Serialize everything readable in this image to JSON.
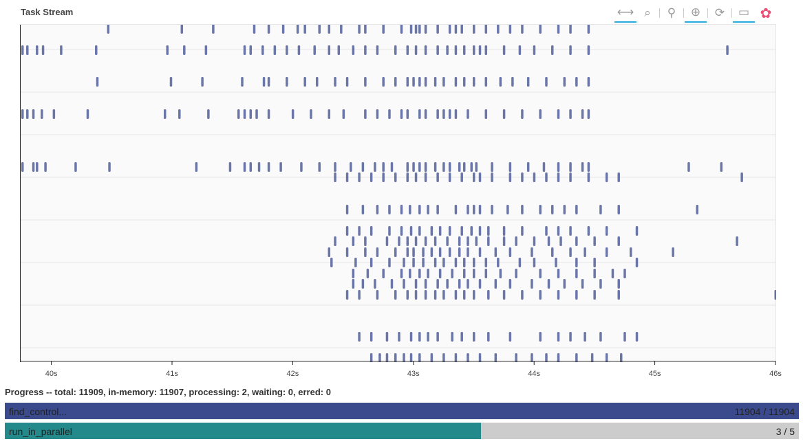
{
  "title": "Task Stream",
  "toolbar": [
    {
      "icon": "pan-icon",
      "glyph": "⟷",
      "active": true
    },
    {
      "icon": "box-zoom-icon",
      "glyph": "⌕",
      "active": false
    },
    {
      "icon": "wheel-zoom-icon",
      "glyph": "⚲",
      "active": false
    },
    {
      "icon": "wheel-zoom-plus-icon",
      "glyph": "⊕",
      "active": true
    },
    {
      "icon": "reset-icon",
      "glyph": "⟳",
      "active": false
    },
    {
      "icon": "hover-icon",
      "glyph": "▭",
      "active": true
    },
    {
      "icon": "bokeh-logo-icon",
      "glyph": "✿",
      "active": false
    }
  ],
  "axis": {
    "ticks": [
      "40s",
      "41s",
      "42s",
      "43s",
      "44s",
      "45s",
      "46s"
    ],
    "tick_values": [
      40,
      41,
      42,
      43,
      44,
      45,
      46
    ],
    "range": [
      39.74,
      46.0
    ]
  },
  "task_color": "#3b4a8c",
  "task_rows": [
    {
      "lane": 0,
      "times": [
        40.47,
        41.08,
        41.34,
        41.68,
        41.8,
        41.92,
        42.04,
        42.1,
        42.22,
        42.3,
        42.4,
        42.55,
        42.6,
        42.75,
        42.9,
        42.98,
        43.02,
        43.05,
        43.1,
        43.2,
        43.3,
        43.35,
        43.4,
        43.5,
        43.6,
        43.7,
        43.8,
        43.9,
        44.05,
        44.2,
        44.3,
        44.45
      ]
    },
    {
      "lane": 1,
      "times": [
        39.76,
        39.8,
        39.88,
        39.93,
        40.08,
        40.37,
        40.96,
        41.1,
        41.28,
        41.6,
        41.65,
        41.75,
        41.85,
        41.95,
        42.05,
        42.18,
        42.3,
        42.38,
        42.5,
        42.6,
        42.7,
        42.85,
        42.95,
        43.02,
        43.1,
        43.2,
        43.28,
        43.35,
        43.42,
        43.5,
        43.55,
        43.6,
        43.75,
        43.88,
        44.0,
        44.15,
        44.3,
        44.45,
        45.6
      ]
    },
    {
      "lane": 2,
      "times": [
        40.38,
        40.99,
        41.25,
        41.58,
        41.76,
        41.8,
        41.95,
        42.1,
        42.2,
        42.35,
        42.45,
        42.6,
        42.75,
        42.85,
        42.95,
        43.0,
        43.05,
        43.1,
        43.18,
        43.25,
        43.35,
        43.42,
        43.5,
        43.6,
        43.72,
        43.82,
        43.95,
        44.1,
        44.25,
        44.35,
        44.45
      ]
    },
    {
      "lane": 3,
      "times": [
        39.76,
        39.8,
        39.85,
        39.92,
        40.02,
        40.3,
        40.94,
        41.06,
        41.3,
        41.55,
        41.6,
        41.65,
        41.7,
        41.8,
        42.0,
        42.15,
        42.3,
        42.42,
        42.6,
        42.7,
        42.8,
        42.9,
        42.95,
        43.05,
        43.1,
        43.2,
        43.25,
        43.3,
        43.35,
        43.45,
        43.6,
        43.75,
        43.9,
        44.05,
        44.2,
        44.3,
        44.4,
        44.45
      ]
    },
    {
      "lane": 4,
      "times": [
        39.76,
        39.85,
        39.88,
        39.95,
        40.2,
        40.48,
        41.2,
        41.48,
        41.6,
        41.65,
        41.72,
        41.8,
        41.9,
        42.07,
        42.22,
        42.35,
        42.48,
        42.58,
        42.68,
        42.75,
        42.82,
        42.95,
        43.0,
        43.05,
        43.1,
        43.18,
        43.25,
        43.3,
        43.38,
        43.42,
        43.48,
        43.52,
        43.65,
        43.8,
        43.95,
        44.08,
        44.2,
        44.3,
        44.4,
        44.45,
        45.28,
        45.55
      ]
    },
    {
      "lane": 5,
      "times": [
        42.35,
        42.45,
        42.55,
        42.65,
        42.75,
        42.85,
        42.95,
        43.02,
        43.1,
        43.2,
        43.3,
        43.4,
        43.5,
        43.55,
        43.65,
        43.8,
        43.9,
        44.0,
        44.1,
        44.2,
        44.3,
        44.45,
        44.6,
        44.7,
        45.72
      ]
    },
    {
      "lane": 6,
      "times": [
        42.45,
        42.58,
        42.7,
        42.8,
        42.9,
        42.97,
        43.05,
        43.12,
        43.2,
        43.35,
        43.45,
        43.5,
        43.55,
        43.65,
        43.78,
        43.9,
        44.05,
        44.15,
        44.25,
        44.35,
        44.55,
        44.7,
        45.35
      ]
    },
    {
      "lane": 7,
      "times": [
        42.45,
        42.55,
        42.65,
        42.8,
        42.9,
        42.98,
        43.05,
        43.15,
        43.22,
        43.3,
        43.4,
        43.48,
        43.55,
        43.62,
        43.75,
        43.9,
        44.1,
        44.2,
        44.3,
        44.45,
        44.6,
        44.85
      ]
    },
    {
      "lane": 8,
      "times": [
        42.35,
        42.5,
        42.6,
        42.78,
        42.88,
        42.95,
        43.02,
        43.1,
        43.18,
        43.28,
        43.38,
        43.45,
        43.52,
        43.62,
        43.75,
        43.85,
        44.0,
        44.12,
        44.22,
        44.35,
        44.5,
        44.7,
        45.68
      ]
    },
    {
      "lane": 9,
      "times": [
        42.3,
        42.45,
        42.6,
        42.7,
        42.85,
        42.95,
        43.0,
        43.08,
        43.15,
        43.22,
        43.3,
        43.38,
        43.45,
        43.55,
        43.68,
        43.8,
        43.98,
        44.15,
        44.3,
        44.42,
        44.6,
        44.8,
        45.15
      ]
    },
    {
      "lane": 10,
      "times": [
        42.32,
        42.52,
        42.65,
        42.8,
        42.92,
        43.0,
        43.08,
        43.18,
        43.25,
        43.35,
        43.42,
        43.5,
        43.6,
        43.7,
        43.88,
        44.0,
        44.18,
        44.35,
        44.5,
        44.85
      ]
    },
    {
      "lane": 11,
      "times": [
        42.5,
        42.62,
        42.75,
        42.9,
        42.97,
        43.05,
        43.12,
        43.22,
        43.32,
        43.42,
        43.5,
        43.6,
        43.72,
        43.85,
        44.05,
        44.2,
        44.35,
        44.5,
        44.65,
        44.75
      ]
    },
    {
      "lane": 12,
      "times": [
        42.5,
        42.58,
        42.68,
        42.82,
        42.92,
        43.02,
        43.1,
        43.2,
        43.28,
        43.38,
        43.45,
        43.55,
        43.68,
        43.8,
        43.98,
        44.12,
        44.25,
        44.4,
        44.55,
        44.7
      ]
    },
    {
      "lane": 13,
      "times": [
        42.45,
        42.55,
        42.7,
        42.85,
        42.95,
        43.02,
        43.1,
        43.18,
        43.25,
        43.35,
        43.42,
        43.5,
        43.62,
        43.75,
        43.9,
        44.05,
        44.2,
        44.35,
        44.5,
        44.7,
        46.0
      ]
    },
    {
      "lane": 14,
      "times": [
        42.55,
        42.65,
        42.78,
        42.88,
        42.98,
        43.05,
        43.12,
        43.2,
        43.32,
        43.4,
        43.5,
        43.62,
        43.8,
        44.05,
        44.2,
        44.3,
        44.42,
        44.55,
        44.75,
        44.85
      ]
    },
    {
      "lane": 15,
      "times": [
        42.65,
        42.72,
        42.78,
        42.85,
        42.92,
        42.98,
        43.05,
        43.15,
        43.25,
        43.35,
        43.45,
        43.55,
        43.68,
        43.85,
        43.98,
        44.1,
        44.2,
        44.35,
        44.48,
        44.6,
        44.72
      ]
    }
  ],
  "progress": {
    "summary": "Progress -- total: 11909, in-memory: 11907, processing: 2, waiting: 0, erred: 0",
    "bars": [
      {
        "name": "find_control...",
        "count": "11904 / 11904",
        "fraction": 1.0,
        "color": "#3b4a8c"
      },
      {
        "name": "run_in_parallel",
        "count": "3 / 5",
        "fraction": 0.6,
        "color": "#23898b"
      }
    ]
  }
}
